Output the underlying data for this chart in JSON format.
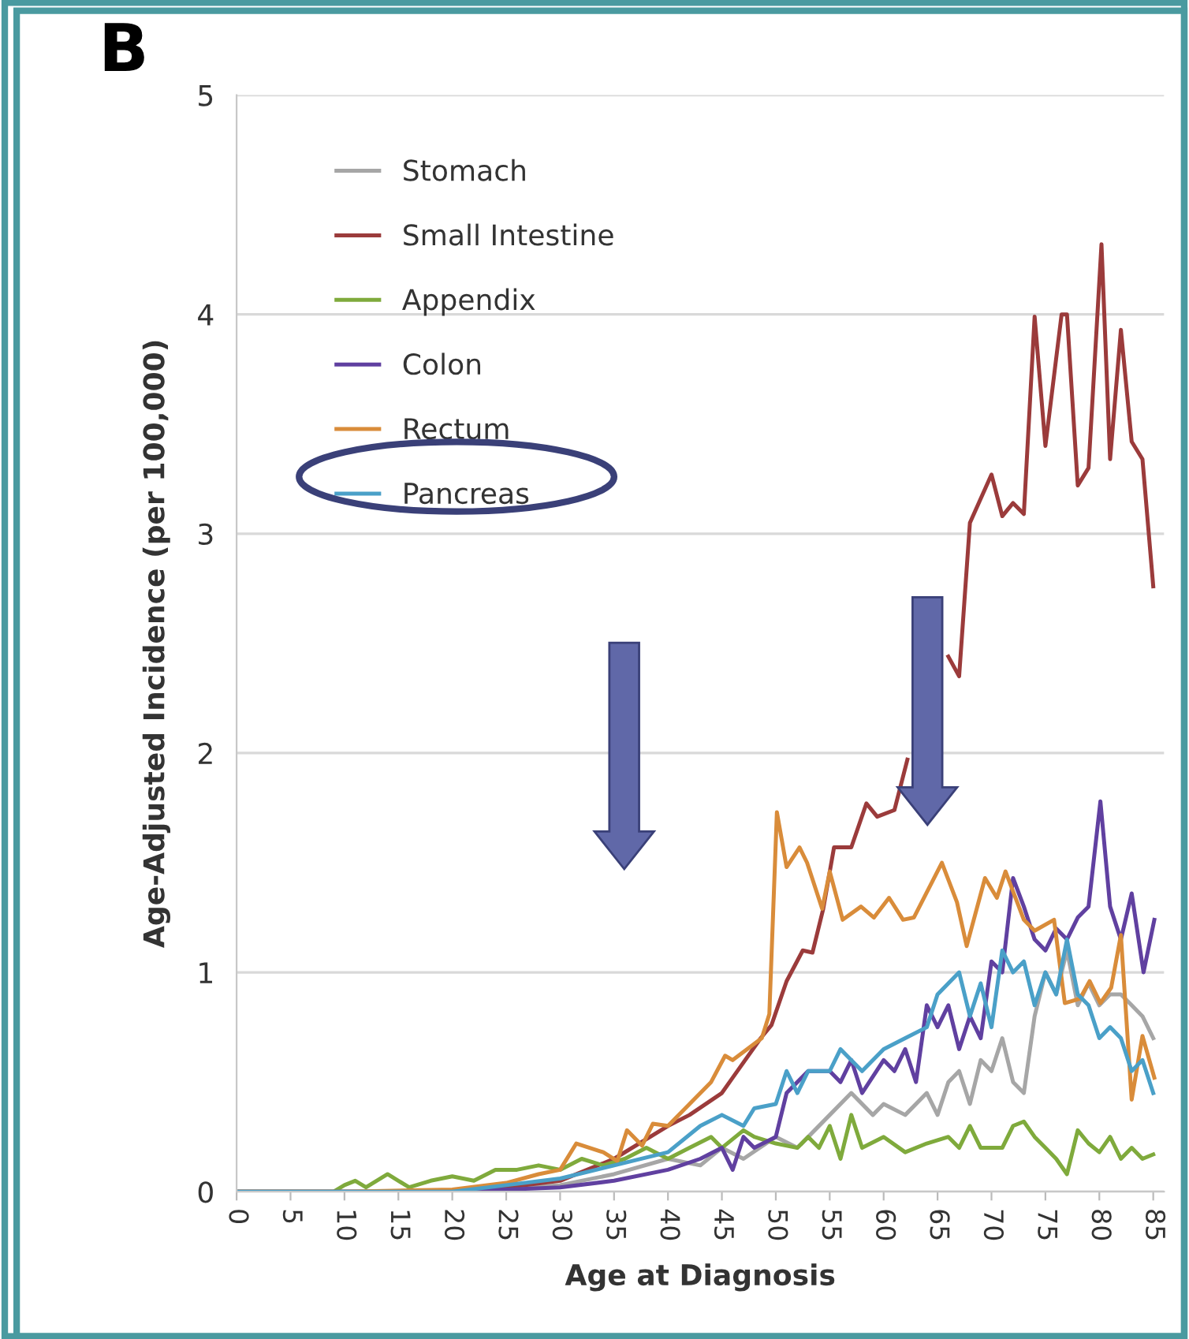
{
  "chart_data": {
    "type": "line",
    "xlabel": "Age at Diagnosis",
    "ylabel": "Age-Adjusted Incidence (per 100,000)",
    "annotations": [
      "B"
    ],
    "xlim": [
      0,
      86
    ],
    "xticks": [
      0,
      5,
      10,
      15,
      20,
      25,
      30,
      35,
      40,
      45,
      50,
      55,
      60,
      65,
      70,
      75,
      80,
      85
    ],
    "ylim": [
      0,
      5
    ],
    "yticks": [
      0,
      1,
      2,
      3,
      4,
      5
    ],
    "grid": "y",
    "legend": "top left",
    "marker": "none",
    "line_style": "solid",
    "series": [
      {
        "name": "Stomach",
        "color": "#a6a6a6",
        "x": [
          0,
          10,
          20,
          30,
          35,
          40,
          43,
          45,
          47,
          50,
          52,
          55,
          57,
          59,
          60,
          62,
          64,
          65,
          66,
          67,
          68,
          69,
          70,
          71,
          72,
          73,
          74,
          75,
          76,
          77,
          78,
          79,
          80,
          81,
          82,
          83,
          84,
          85
        ],
        "values": [
          0,
          0,
          0,
          0.03,
          0.08,
          0.15,
          0.12,
          0.2,
          0.15,
          0.25,
          0.2,
          0.35,
          0.45,
          0.35,
          0.4,
          0.35,
          0.45,
          0.35,
          0.5,
          0.55,
          0.4,
          0.6,
          0.55,
          0.7,
          0.5,
          0.45,
          0.8,
          1.0,
          0.9,
          1.1,
          0.85,
          0.95,
          0.85,
          0.9,
          0.9,
          0.85,
          0.8,
          0.7
        ]
      },
      {
        "name": "Small Intestine",
        "color": "#9b3b3b",
        "x": [
          0,
          10,
          20,
          25,
          30,
          35,
          40,
          42,
          45,
          46,
          48.6,
          49.6,
          51,
          52.5,
          53.4,
          54.4,
          55.4,
          57,
          58.4,
          59.4,
          61,
          62.2,
          63.5,
          65,
          66,
          67,
          68,
          70,
          71,
          72,
          73,
          74,
          75,
          76.5,
          77,
          78,
          79,
          80.2,
          81,
          82,
          83,
          84,
          85
        ],
        "values": [
          0,
          0,
          0,
          0.02,
          0.05,
          0.15,
          0.3,
          0.35,
          0.45,
          0.52,
          0.7,
          0.76,
          0.96,
          1.1,
          1.09,
          1.29,
          1.57,
          1.57,
          1.77,
          1.71,
          1.74,
          1.97,
          null,
          null,
          2.44,
          2.35,
          3.05,
          3.27,
          3.08,
          3.14,
          3.09,
          3.99,
          3.4,
          4.0,
          4.0,
          3.22,
          3.3,
          4.32,
          3.34,
          3.93,
          3.42,
          3.34,
          2.76
        ]
      },
      {
        "name": "Appendix",
        "color": "#7faa3c",
        "x": [
          0,
          9,
          10,
          11,
          12,
          14,
          15,
          16,
          18,
          20,
          22,
          24,
          26,
          28,
          30,
          32,
          34,
          36,
          38,
          40,
          42,
          44,
          45,
          47,
          48,
          50,
          52,
          53,
          54,
          55,
          56,
          57,
          58,
          60,
          62,
          64,
          66,
          67,
          68,
          69,
          71,
          72,
          73,
          74,
          75,
          76,
          77,
          78,
          79,
          80,
          81,
          82,
          83,
          84,
          85
        ],
        "values": [
          0,
          0,
          0.03,
          0.05,
          0.02,
          0.08,
          0.05,
          0.02,
          0.05,
          0.07,
          0.05,
          0.1,
          0.1,
          0.12,
          0.1,
          0.15,
          0.12,
          0.15,
          0.2,
          0.15,
          0.2,
          0.25,
          0.2,
          0.28,
          0.25,
          0.22,
          0.2,
          0.25,
          0.2,
          0.3,
          0.15,
          0.35,
          0.2,
          0.25,
          0.18,
          0.22,
          0.25,
          0.2,
          0.3,
          0.2,
          0.2,
          0.3,
          0.32,
          0.25,
          0.2,
          0.15,
          0.08,
          0.28,
          0.22,
          0.18,
          0.25,
          0.15,
          0.2,
          0.15,
          0.17
        ]
      },
      {
        "name": "Colon",
        "color": "#6040a0",
        "x": [
          0,
          10,
          20,
          30,
          35,
          40,
          43,
          45,
          46,
          47,
          48,
          50,
          51,
          53,
          55,
          56,
          57,
          58,
          60,
          61,
          62,
          63,
          64,
          65,
          66,
          67,
          68,
          69,
          70,
          71,
          72,
          73,
          74,
          75,
          76,
          77,
          78,
          79,
          80.1,
          81,
          82,
          83,
          84.1,
          85.1
        ],
        "values": [
          0,
          0,
          0,
          0.02,
          0.05,
          0.1,
          0.15,
          0.2,
          0.1,
          0.25,
          0.2,
          0.25,
          0.45,
          0.55,
          0.55,
          0.5,
          0.6,
          0.45,
          0.6,
          0.55,
          0.65,
          0.5,
          0.85,
          0.75,
          0.85,
          0.65,
          0.8,
          0.7,
          1.05,
          1.0,
          1.43,
          1.3,
          1.15,
          1.1,
          1.2,
          1.15,
          1.25,
          1.3,
          1.78,
          1.3,
          1.15,
          1.36,
          1.0,
          1.24
        ]
      },
      {
        "name": "Rectum",
        "color": "#d98c3a",
        "x": [
          0,
          10,
          20,
          25,
          28,
          30,
          31.5,
          34,
          35.3,
          36.2,
          37.6,
          38.6,
          40,
          42,
          44,
          45.3,
          46,
          48.7,
          49.4,
          50.1,
          51,
          52.2,
          52.9,
          54.3,
          55,
          56.2,
          57.9,
          59.1,
          60.5,
          61.8,
          62.8,
          65.4,
          66.8,
          67.7,
          69.4,
          70.5,
          71.3,
          73,
          74,
          75.8,
          76.8,
          78.2,
          79.1,
          80.1,
          81.1,
          82,
          83,
          84,
          85.1
        ],
        "values": [
          0,
          0,
          0.01,
          0.04,
          0.08,
          0.1,
          0.22,
          0.18,
          0.14,
          0.28,
          0.21,
          0.31,
          0.3,
          0.4,
          0.5,
          0.62,
          0.6,
          0.7,
          0.81,
          1.73,
          1.48,
          1.57,
          1.5,
          1.29,
          1.46,
          1.24,
          1.3,
          1.25,
          1.34,
          1.24,
          1.25,
          1.5,
          1.32,
          1.12,
          1.43,
          1.34,
          1.46,
          1.24,
          1.19,
          1.24,
          0.86,
          0.88,
          0.96,
          0.86,
          0.93,
          1.17,
          0.42,
          0.71,
          0.52
        ]
      },
      {
        "name": "Pancreas",
        "color": "#4aa0c8",
        "x": [
          0,
          10,
          20,
          25,
          30,
          35,
          40,
          43,
          45,
          47,
          48,
          50,
          51,
          52,
          53,
          55,
          56,
          58,
          60,
          62,
          64,
          65,
          66,
          67,
          68,
          69,
          70,
          71,
          72,
          73,
          74,
          75,
          76,
          77,
          78,
          79,
          80,
          81,
          82,
          83,
          84,
          85
        ],
        "values": [
          0,
          0,
          0,
          0.03,
          0.06,
          0.12,
          0.18,
          0.3,
          0.35,
          0.3,
          0.38,
          0.4,
          0.55,
          0.45,
          0.55,
          0.55,
          0.65,
          0.55,
          0.65,
          0.7,
          0.75,
          0.9,
          0.95,
          1.0,
          0.8,
          0.95,
          0.75,
          1.1,
          1.0,
          1.05,
          0.85,
          1.0,
          0.9,
          1.15,
          0.9,
          0.85,
          0.7,
          0.75,
          0.7,
          0.55,
          0.6,
          0.45
        ]
      }
    ]
  }
}
